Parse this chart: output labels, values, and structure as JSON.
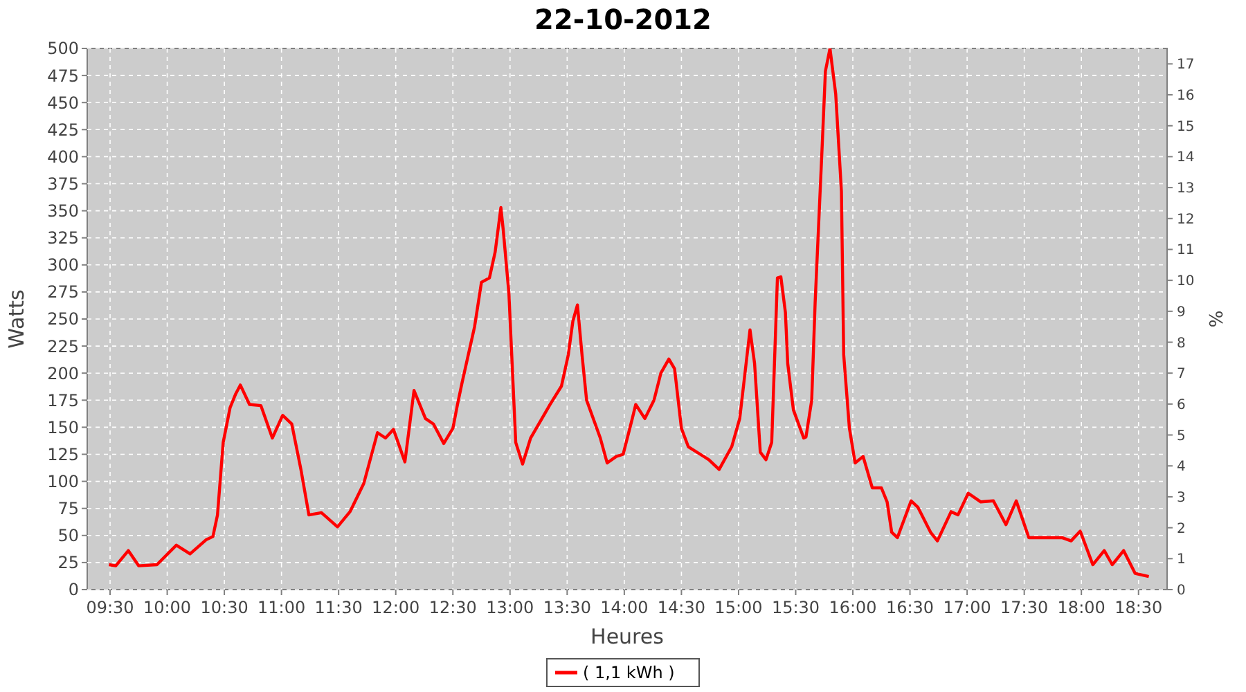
{
  "chart_data": {
    "type": "line",
    "title": "22-10-2012",
    "xlabel": "Heures",
    "ylabel": "Watts",
    "y2label": "%",
    "x": [
      9.49,
      9.55,
      9.66,
      9.75,
      9.91,
      10.08,
      10.2,
      10.34,
      10.4,
      10.44,
      10.49,
      10.55,
      10.6,
      10.64,
      10.72,
      10.82,
      10.92,
      11.01,
      11.09,
      11.17,
      11.24,
      11.35,
      11.49,
      11.6,
      11.72,
      11.84,
      11.91,
      11.98,
      12.08,
      12.16,
      12.26,
      12.33,
      12.42,
      12.5,
      12.54,
      12.58,
      12.69,
      12.75,
      12.82,
      12.87,
      12.92,
      12.94,
      12.99,
      13.05,
      13.11,
      13.18,
      13.35,
      13.45,
      13.51,
      13.55,
      13.59,
      13.63,
      13.67,
      13.79,
      13.85,
      13.93,
      13.99,
      14.07,
      14.1,
      14.18,
      14.26,
      14.32,
      14.39,
      14.44,
      14.5,
      14.56,
      14.74,
      14.83,
      14.94,
      15.01,
      15.1,
      15.14,
      15.19,
      15.24,
      15.29,
      15.34,
      15.37,
      15.41,
      15.43,
      15.48,
      15.57,
      15.59,
      15.64,
      15.67,
      15.73,
      15.76,
      15.8,
      15.85,
      15.9,
      15.92,
      15.97,
      16.02,
      16.09,
      16.17,
      16.25,
      16.3,
      16.34,
      16.39,
      16.51,
      16.57,
      16.68,
      16.74,
      16.86,
      16.92,
      17.01,
      17.12,
      17.23,
      17.34,
      17.43,
      17.54,
      17.66,
      17.83,
      17.91,
      17.99,
      18.1,
      18.2,
      18.27,
      18.37,
      18.47,
      18.59
    ],
    "series": [
      {
        "name": "( 1,1 kWh )",
        "color": "#ff0000",
        "values": [
          23,
          22,
          36,
          22,
          23,
          41,
          33,
          46,
          49,
          69,
          136,
          168,
          181,
          189,
          171,
          170,
          140,
          161,
          153,
          111,
          69,
          71,
          58,
          72,
          98,
          145,
          140,
          148,
          118,
          184,
          158,
          153,
          135,
          149,
          171,
          191,
          243,
          284,
          288,
          312,
          353,
          333,
          274,
          136,
          116,
          140,
          171,
          188,
          217,
          248,
          263,
          217,
          175,
          140,
          117,
          123,
          125,
          158,
          171,
          158,
          175,
          200,
          213,
          204,
          149,
          132,
          120,
          111,
          132,
          158,
          240,
          209,
          127,
          120,
          136,
          288,
          289,
          256,
          209,
          166,
          140,
          141,
          175,
          265,
          406,
          479,
          500,
          458,
          368,
          217,
          149,
          117,
          123,
          94,
          94,
          81,
          53,
          48,
          82,
          76,
          53,
          45,
          72,
          69,
          89,
          81,
          82,
          60,
          82,
          48,
          48,
          48,
          45,
          54,
          23,
          36,
          23,
          36,
          15,
          12
        ]
      }
    ],
    "xlim": [
      9.3,
      18.75
    ],
    "xticks": [
      {
        "value": 9.5,
        "label": "09:30"
      },
      {
        "value": 10,
        "label": "10:00"
      },
      {
        "value": 10.5,
        "label": "10:30"
      },
      {
        "value": 11,
        "label": "11:00"
      },
      {
        "value": 11.5,
        "label": "11:30"
      },
      {
        "value": 12,
        "label": "12:00"
      },
      {
        "value": 12.5,
        "label": "12:30"
      },
      {
        "value": 13,
        "label": "13:00"
      },
      {
        "value": 13.5,
        "label": "13:30"
      },
      {
        "value": 14,
        "label": "14:00"
      },
      {
        "value": 14.5,
        "label": "14:30"
      },
      {
        "value": 15,
        "label": "15:00"
      },
      {
        "value": 15.5,
        "label": "15:30"
      },
      {
        "value": 16,
        "label": "16:00"
      },
      {
        "value": 16.5,
        "label": "16:30"
      },
      {
        "value": 17,
        "label": "17:00"
      },
      {
        "value": 17.5,
        "label": "17:30"
      },
      {
        "value": 18,
        "label": "18:00"
      },
      {
        "value": 18.5,
        "label": "18:30"
      }
    ],
    "ylim": [
      0,
      500
    ],
    "yticks": [
      0,
      25,
      50,
      75,
      100,
      125,
      150,
      175,
      200,
      225,
      250,
      275,
      300,
      325,
      350,
      375,
      400,
      425,
      450,
      475,
      500
    ],
    "y2lim": [
      0,
      17.5
    ],
    "y2ticks": [
      0,
      1,
      2,
      3,
      4,
      5,
      6,
      7,
      8,
      9,
      10,
      11,
      12,
      13,
      14,
      15,
      16,
      17
    ],
    "grid": true,
    "legend": "bottom",
    "marker": "none",
    "line_style": "solid"
  }
}
